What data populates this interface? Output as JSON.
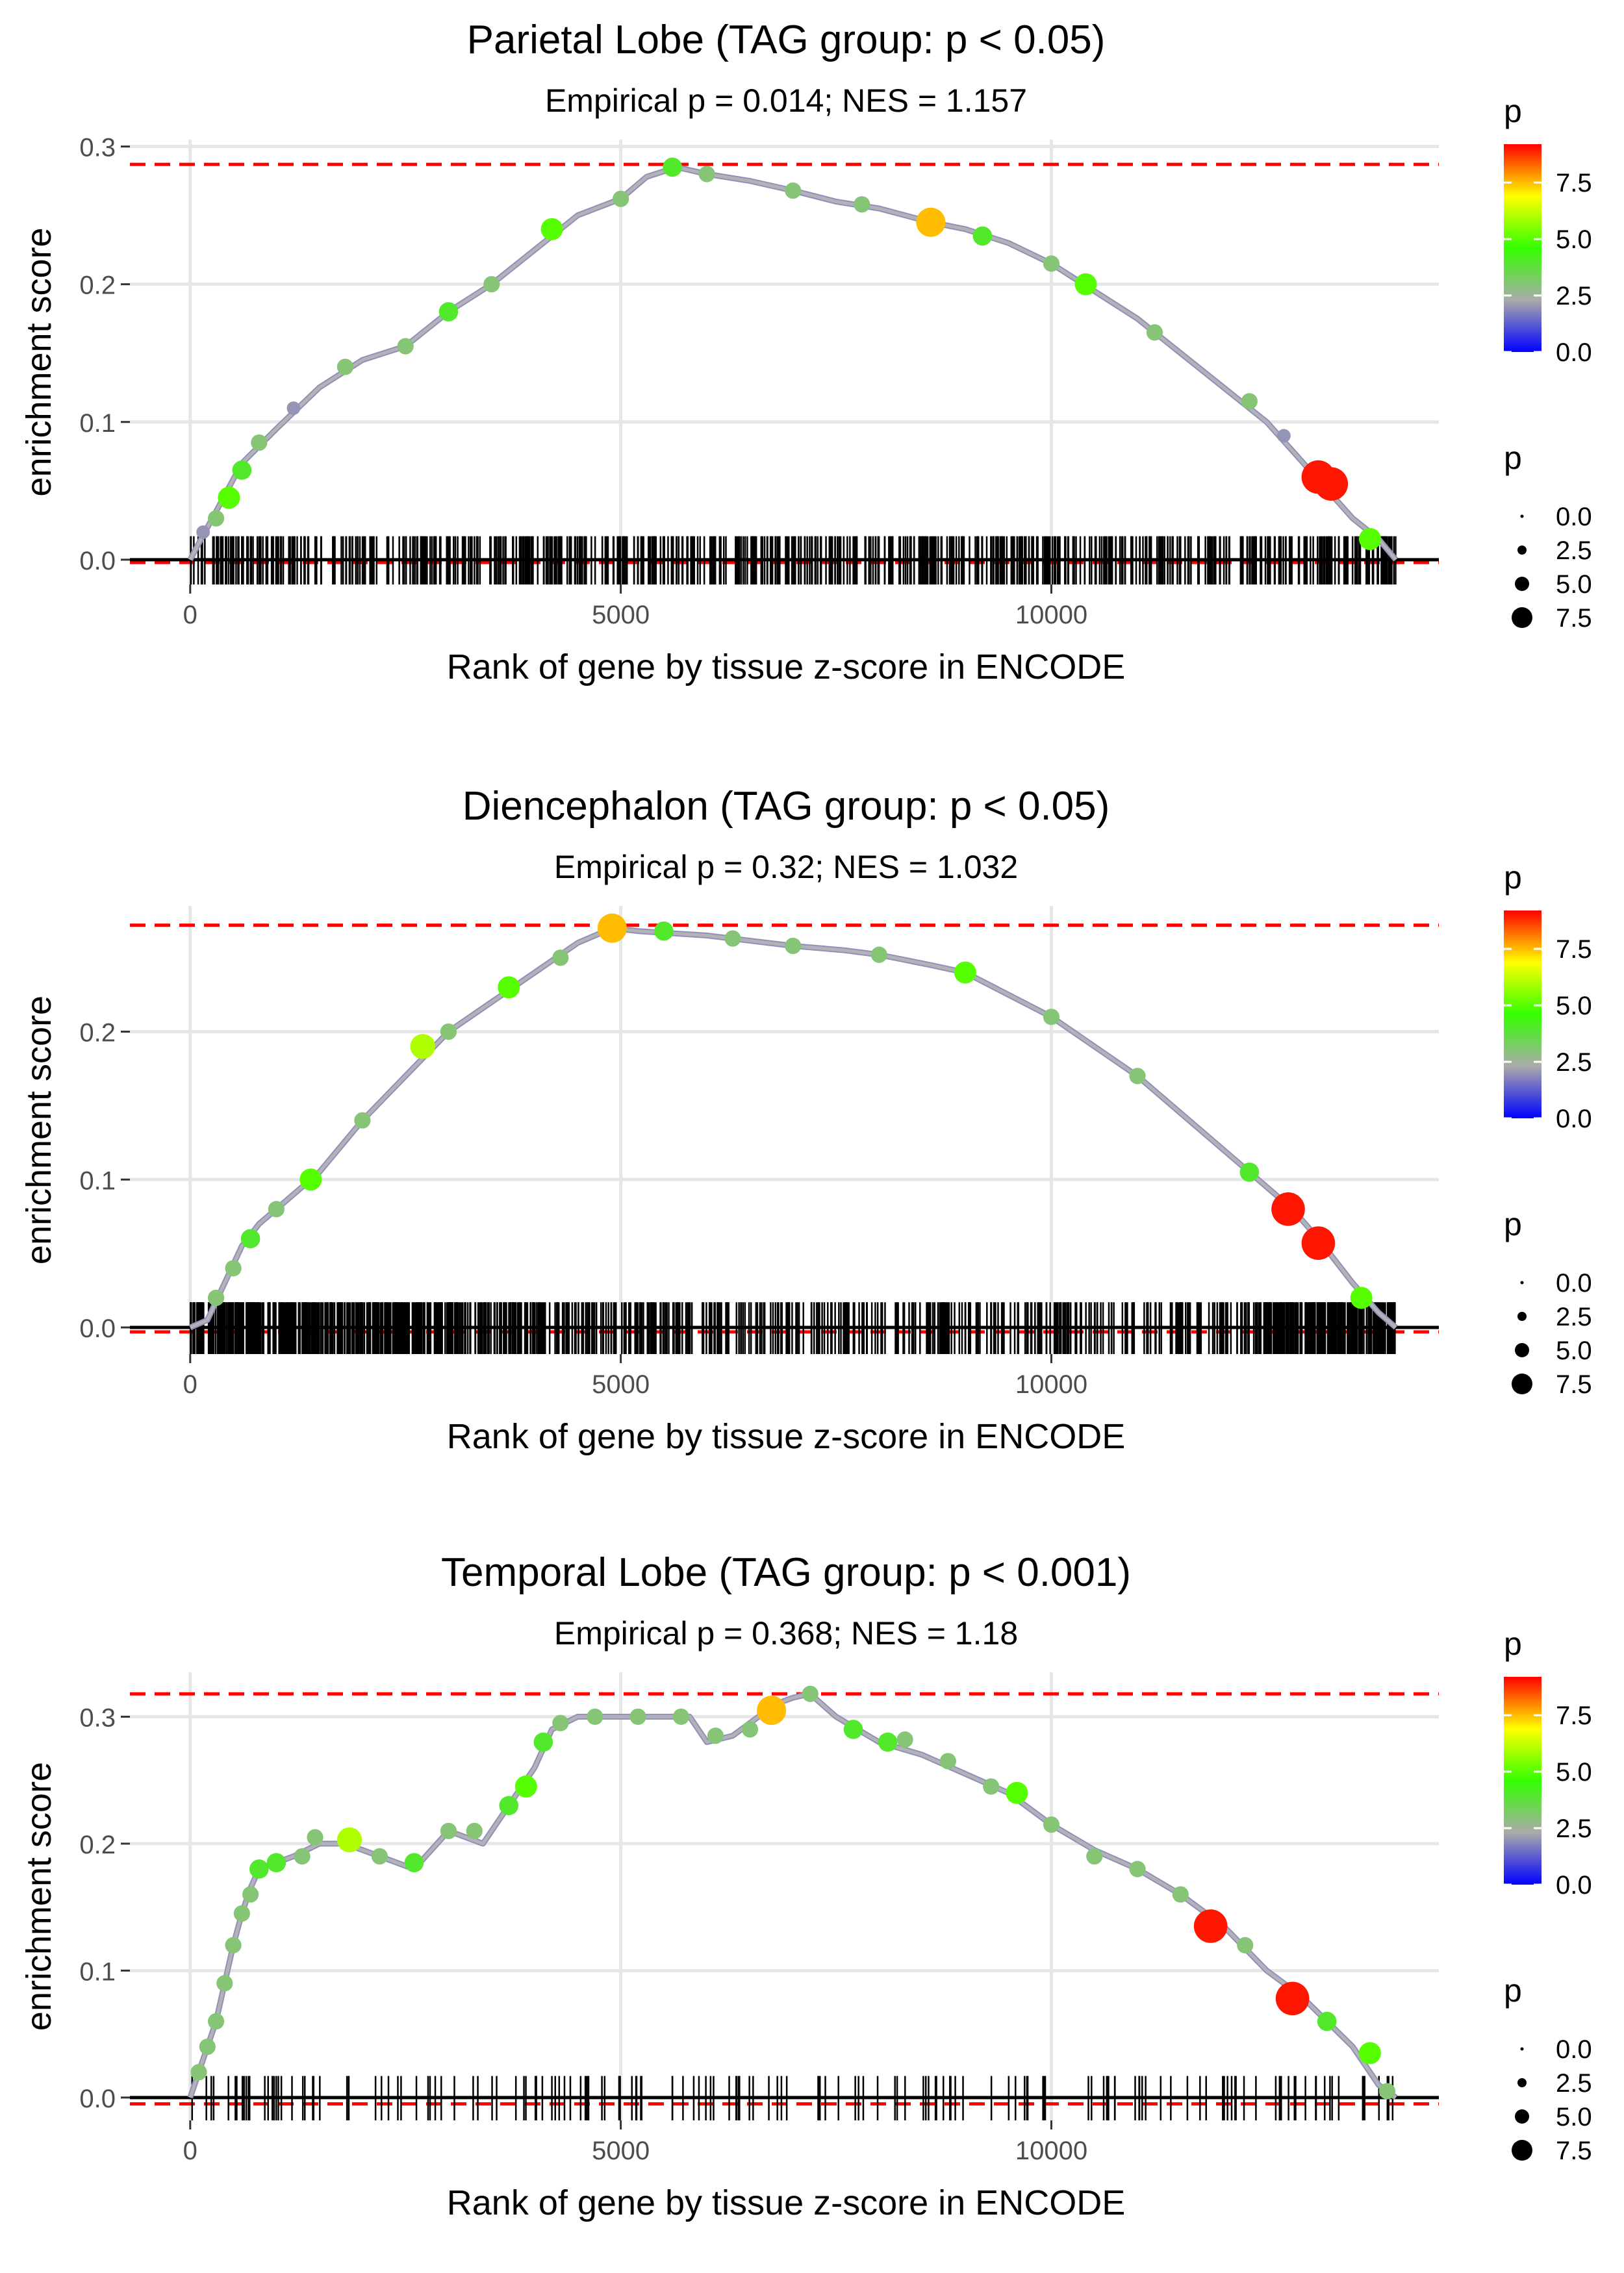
{
  "chart_data": [
    {
      "type": "line",
      "title": "Parietal Lobe (TAG group: p < 0.05)",
      "subtitle": "Empirical p = 0.014; NES = 1.157",
      "xlabel": "Rank of gene by tissue z-score in ENCODE",
      "ylabel": "enrichment score",
      "xlim": [
        -700,
        14500
      ],
      "ylim": [
        -0.018,
        0.305
      ],
      "x_ticks": [
        0,
        5000,
        10000
      ],
      "x_tick_labels": [
        "0",
        "5000",
        "10000"
      ],
      "y_ticks": [
        0,
        0.1,
        0.2,
        0.3
      ],
      "y_tick_labels": [
        "0.0",
        "0.1",
        "0.2",
        "0.3"
      ],
      "ref_lines": [
        0.287,
        -0.002
      ],
      "n_genes": 14000,
      "curve": [
        [
          0,
          0.0
        ],
        [
          100,
          0.012
        ],
        [
          300,
          0.035
        ],
        [
          600,
          0.07
        ],
        [
          1000,
          0.095
        ],
        [
          1500,
          0.125
        ],
        [
          2000,
          0.145
        ],
        [
          2500,
          0.155
        ],
        [
          3000,
          0.18
        ],
        [
          3500,
          0.2
        ],
        [
          4000,
          0.225
        ],
        [
          4500,
          0.25
        ],
        [
          5000,
          0.262
        ],
        [
          5300,
          0.278
        ],
        [
          5650,
          0.285
        ],
        [
          6000,
          0.28
        ],
        [
          6500,
          0.275
        ],
        [
          7000,
          0.268
        ],
        [
          7500,
          0.26
        ],
        [
          8000,
          0.255
        ],
        [
          8600,
          0.245
        ],
        [
          9000,
          0.24
        ],
        [
          9500,
          0.23
        ],
        [
          10000,
          0.215
        ],
        [
          10500,
          0.195
        ],
        [
          11000,
          0.175
        ],
        [
          11500,
          0.15
        ],
        [
          12000,
          0.125
        ],
        [
          12500,
          0.1
        ],
        [
          13000,
          0.065
        ],
        [
          13500,
          0.03
        ],
        [
          13800,
          0.015
        ],
        [
          14000,
          0.0
        ]
      ],
      "points": [
        [
          150,
          0.02,
          2
        ],
        [
          300,
          0.03,
          3
        ],
        [
          450,
          0.045,
          5
        ],
        [
          600,
          0.065,
          4
        ],
        [
          800,
          0.085,
          3
        ],
        [
          1200,
          0.11,
          2
        ],
        [
          1800,
          0.14,
          3
        ],
        [
          2500,
          0.155,
          3
        ],
        [
          3000,
          0.18,
          4
        ],
        [
          3500,
          0.2,
          3
        ],
        [
          4200,
          0.24,
          5
        ],
        [
          5000,
          0.262,
          3
        ],
        [
          5600,
          0.285,
          4
        ],
        [
          6000,
          0.28,
          3
        ],
        [
          7000,
          0.268,
          3
        ],
        [
          7800,
          0.258,
          3
        ],
        [
          8600,
          0.245,
          7.5
        ],
        [
          9200,
          0.235,
          4
        ],
        [
          10000,
          0.215,
          3
        ],
        [
          10400,
          0.2,
          5
        ],
        [
          11200,
          0.165,
          3
        ],
        [
          12300,
          0.115,
          3
        ],
        [
          12700,
          0.09,
          2
        ],
        [
          13100,
          0.06,
          9
        ],
        [
          13250,
          0.055,
          9
        ],
        [
          13700,
          0.015,
          5
        ]
      ],
      "rug": {
        "n": 700,
        "seed": 11,
        "weights": [
          [
            0,
            14000,
            1.0
          ]
        ]
      },
      "legend_color_title": "p",
      "legend_color_labels": [
        "7.5",
        "5.0",
        "2.5",
        "0.0"
      ],
      "legend_size_title": "p",
      "legend_size_labels": [
        "0.0",
        "2.5",
        "5.0",
        "7.5"
      ]
    },
    {
      "type": "line",
      "title": "Diencephalon (TAG group: p < 0.05)",
      "subtitle": "Empirical p = 0.32; NES = 1.032",
      "xlabel": "Rank of gene by tissue z-score in ENCODE",
      "ylabel": "enrichment score",
      "xlim": [
        -700,
        14500
      ],
      "ylim": [
        -0.018,
        0.285
      ],
      "x_ticks": [
        0,
        5000,
        10000
      ],
      "x_tick_labels": [
        "0",
        "5000",
        "10000"
      ],
      "y_ticks": [
        0,
        0.1,
        0.2
      ],
      "y_tick_labels": [
        "0.0",
        "0.1",
        "0.2"
      ],
      "ref_lines": [
        0.272,
        -0.003
      ],
      "n_genes": 14000,
      "curve": [
        [
          0,
          0.0
        ],
        [
          200,
          0.005
        ],
        [
          400,
          0.03
        ],
        [
          600,
          0.055
        ],
        [
          800,
          0.07
        ],
        [
          1000,
          0.08
        ],
        [
          1500,
          0.105
        ],
        [
          2000,
          0.14
        ],
        [
          2500,
          0.17
        ],
        [
          3000,
          0.2
        ],
        [
          3500,
          0.22
        ],
        [
          4000,
          0.24
        ],
        [
          4500,
          0.26
        ],
        [
          4900,
          0.27
        ],
        [
          5200,
          0.268
        ],
        [
          6000,
          0.265
        ],
        [
          7000,
          0.258
        ],
        [
          7600,
          0.255
        ],
        [
          8000,
          0.252
        ],
        [
          8600,
          0.245
        ],
        [
          9000,
          0.24
        ],
        [
          9500,
          0.225
        ],
        [
          10000,
          0.21
        ],
        [
          10500,
          0.19
        ],
        [
          11000,
          0.17
        ],
        [
          11500,
          0.145
        ],
        [
          12000,
          0.12
        ],
        [
          12500,
          0.095
        ],
        [
          12800,
          0.08
        ],
        [
          13100,
          0.06
        ],
        [
          13500,
          0.03
        ],
        [
          13800,
          0.01
        ],
        [
          14000,
          0.0
        ]
      ],
      "points": [
        [
          300,
          0.02,
          3
        ],
        [
          500,
          0.04,
          3
        ],
        [
          700,
          0.06,
          4
        ],
        [
          1000,
          0.08,
          3
        ],
        [
          1400,
          0.1,
          5
        ],
        [
          2000,
          0.14,
          3
        ],
        [
          2700,
          0.19,
          6
        ],
        [
          3000,
          0.2,
          3
        ],
        [
          3700,
          0.23,
          5
        ],
        [
          4300,
          0.25,
          3
        ],
        [
          4900,
          0.27,
          7.5
        ],
        [
          5500,
          0.268,
          4
        ],
        [
          6300,
          0.263,
          3
        ],
        [
          7000,
          0.258,
          3
        ],
        [
          8000,
          0.252,
          3
        ],
        [
          9000,
          0.24,
          5
        ],
        [
          10000,
          0.21,
          3
        ],
        [
          11000,
          0.17,
          3
        ],
        [
          12300,
          0.105,
          4
        ],
        [
          12750,
          0.08,
          9
        ],
        [
          13100,
          0.057,
          9
        ],
        [
          13600,
          0.02,
          5
        ]
      ],
      "rug": {
        "n": 1000,
        "seed": 23,
        "weights": [
          [
            0,
            4000,
            1.4
          ],
          [
            4000,
            7000,
            0.7
          ],
          [
            7000,
            12400,
            0.5
          ],
          [
            12400,
            14000,
            1.6
          ]
        ]
      },
      "legend_color_title": "p",
      "legend_color_labels": [
        "7.5",
        "5.0",
        "2.5",
        "0.0"
      ],
      "legend_size_title": "p",
      "legend_size_labels": [
        "0.0",
        "2.5",
        "5.0",
        "7.5"
      ]
    },
    {
      "type": "line",
      "title": "Temporal Lobe (TAG group: p < 0.001)",
      "subtitle": "Empirical p = 0.368; NES = 1.18",
      "xlabel": "Rank of gene by tissue z-score in ENCODE",
      "ylabel": "enrichment score",
      "xlim": [
        -700,
        14500
      ],
      "ylim": [
        -0.018,
        0.335
      ],
      "x_ticks": [
        0,
        5000,
        10000
      ],
      "x_tick_labels": [
        "0",
        "5000",
        "10000"
      ],
      "y_ticks": [
        0,
        0.1,
        0.2,
        0.3
      ],
      "y_tick_labels": [
        "0.0",
        "0.1",
        "0.2",
        "0.3"
      ],
      "ref_lines": [
        0.318,
        -0.005
      ],
      "n_genes": 14000,
      "curve": [
        [
          0,
          0.0
        ],
        [
          100,
          0.02
        ],
        [
          200,
          0.04
        ],
        [
          300,
          0.06
        ],
        [
          400,
          0.09
        ],
        [
          500,
          0.12
        ],
        [
          600,
          0.145
        ],
        [
          700,
          0.165
        ],
        [
          800,
          0.18
        ],
        [
          1000,
          0.185
        ],
        [
          1200,
          0.19
        ],
        [
          1500,
          0.2
        ],
        [
          1800,
          0.2
        ],
        [
          2200,
          0.19
        ],
        [
          2600,
          0.18
        ],
        [
          3000,
          0.21
        ],
        [
          3400,
          0.2
        ],
        [
          3700,
          0.23
        ],
        [
          4000,
          0.26
        ],
        [
          4200,
          0.29
        ],
        [
          4500,
          0.3
        ],
        [
          5000,
          0.3
        ],
        [
          5500,
          0.3
        ],
        [
          5800,
          0.3
        ],
        [
          6000,
          0.28
        ],
        [
          6300,
          0.285
        ],
        [
          6600,
          0.3
        ],
        [
          6800,
          0.31
        ],
        [
          7000,
          0.315
        ],
        [
          7200,
          0.318
        ],
        [
          7500,
          0.3
        ],
        [
          8000,
          0.28
        ],
        [
          8500,
          0.27
        ],
        [
          9000,
          0.255
        ],
        [
          9500,
          0.24
        ],
        [
          10000,
          0.215
        ],
        [
          10500,
          0.195
        ],
        [
          11000,
          0.18
        ],
        [
          11500,
          0.16
        ],
        [
          12000,
          0.135
        ],
        [
          12500,
          0.1
        ],
        [
          12900,
          0.08
        ],
        [
          13200,
          0.06
        ],
        [
          13500,
          0.04
        ],
        [
          13800,
          0.01
        ],
        [
          14000,
          0.0
        ]
      ],
      "points": [
        [
          100,
          0.02,
          3
        ],
        [
          200,
          0.04,
          3
        ],
        [
          300,
          0.06,
          3
        ],
        [
          400,
          0.09,
          3
        ],
        [
          500,
          0.12,
          3
        ],
        [
          600,
          0.145,
          3
        ],
        [
          700,
          0.16,
          3
        ],
        [
          800,
          0.18,
          4
        ],
        [
          1000,
          0.185,
          4
        ],
        [
          1300,
          0.19,
          3
        ],
        [
          1450,
          0.205,
          3
        ],
        [
          1850,
          0.203,
          6
        ],
        [
          2200,
          0.19,
          3
        ],
        [
          2600,
          0.185,
          4
        ],
        [
          3000,
          0.21,
          3
        ],
        [
          3300,
          0.21,
          3
        ],
        [
          3700,
          0.23,
          4
        ],
        [
          3900,
          0.245,
          5
        ],
        [
          4100,
          0.28,
          4
        ],
        [
          4300,
          0.295,
          3
        ],
        [
          4700,
          0.3,
          3
        ],
        [
          5200,
          0.3,
          3
        ],
        [
          5700,
          0.3,
          3
        ],
        [
          6100,
          0.285,
          3
        ],
        [
          6500,
          0.29,
          3
        ],
        [
          6750,
          0.305,
          7.5
        ],
        [
          7200,
          0.318,
          3
        ],
        [
          7700,
          0.29,
          4
        ],
        [
          8100,
          0.28,
          4
        ],
        [
          8300,
          0.282,
          3
        ],
        [
          8800,
          0.265,
          3
        ],
        [
          9300,
          0.245,
          3
        ],
        [
          9600,
          0.24,
          5
        ],
        [
          10000,
          0.215,
          3
        ],
        [
          10500,
          0.19,
          3
        ],
        [
          11000,
          0.18,
          3
        ],
        [
          11500,
          0.16,
          3
        ],
        [
          11850,
          0.135,
          9
        ],
        [
          12250,
          0.12,
          3
        ],
        [
          12800,
          0.078,
          9
        ],
        [
          13200,
          0.06,
          4
        ],
        [
          13700,
          0.035,
          5
        ],
        [
          13900,
          0.005,
          3
        ]
      ],
      "rug": {
        "n": 170,
        "seed": 37,
        "weights": [
          [
            0,
            14000,
            1.0
          ]
        ]
      },
      "legend_color_title": "p",
      "legend_color_labels": [
        "7.5",
        "5.0",
        "2.5",
        "0.0"
      ],
      "legend_size_title": "p",
      "legend_size_labels": [
        "0.0",
        "2.5",
        "5.0",
        "7.5"
      ]
    }
  ]
}
